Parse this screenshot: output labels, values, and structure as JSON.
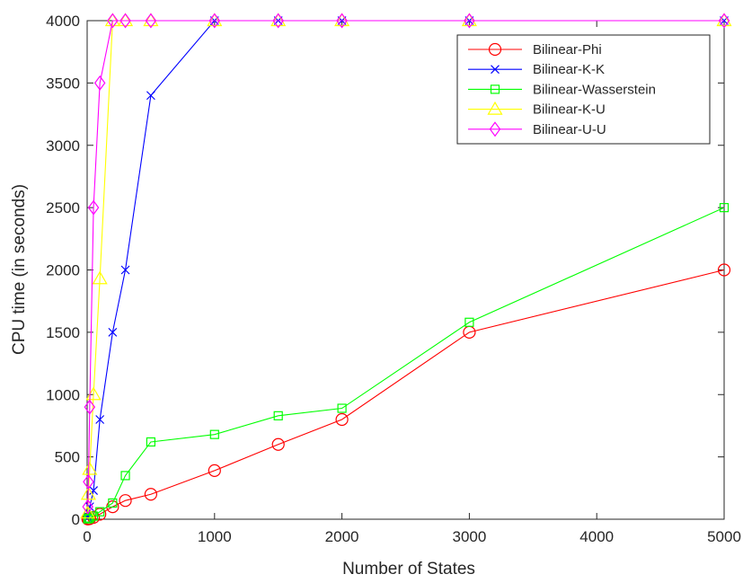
{
  "chart_data": {
    "type": "line",
    "title": "",
    "xlabel": "Number of States",
    "ylabel": "CPU time (in seconds)",
    "xlim": [
      0,
      5000
    ],
    "ylim": [
      0,
      4000
    ],
    "xticks": [
      0,
      1000,
      2000,
      3000,
      4000,
      5000
    ],
    "yticks": [
      0,
      500,
      1000,
      1500,
      2000,
      2500,
      3000,
      3500,
      4000
    ],
    "grid": false,
    "legend_position": "top-right",
    "series": [
      {
        "name": "Bilinear-Phi",
        "color": "#ff0000",
        "marker": "circle",
        "x": [
          5,
          10,
          20,
          50,
          100,
          200,
          300,
          500,
          1000,
          1500,
          2000,
          3000,
          5000
        ],
        "y": [
          2,
          3,
          5,
          15,
          40,
          100,
          150,
          200,
          390,
          600,
          800,
          1500,
          2000
        ]
      },
      {
        "name": "Bilinear-K-K",
        "color": "#0000ff",
        "marker": "x",
        "x": [
          5,
          10,
          20,
          50,
          100,
          200,
          300,
          500,
          1000,
          1500,
          2000,
          3000,
          5000
        ],
        "y": [
          10,
          20,
          100,
          230,
          800,
          1500,
          2000,
          3400,
          4000,
          4000,
          4000,
          4000,
          4000
        ]
      },
      {
        "name": "Bilinear-Wasserstein",
        "color": "#00ff00",
        "marker": "square",
        "x": [
          5,
          10,
          20,
          50,
          100,
          200,
          300,
          500,
          1000,
          1500,
          2000,
          3000,
          5000
        ],
        "y": [
          2,
          5,
          10,
          25,
          60,
          130,
          350,
          620,
          680,
          830,
          890,
          1580,
          2500
        ]
      },
      {
        "name": "Bilinear-K-U",
        "color": "#ffff00",
        "marker": "triangle",
        "x": [
          5,
          10,
          20,
          50,
          100,
          200,
          300,
          500,
          1000,
          1500,
          2000,
          3000,
          5000
        ],
        "y": [
          50,
          200,
          400,
          1000,
          1930,
          4000,
          4000,
          4000,
          4000,
          4000,
          4000,
          4000,
          4000
        ]
      },
      {
        "name": "Bilinear-U-U",
        "color": "#ff00ff",
        "marker": "diamond",
        "x": [
          5,
          10,
          20,
          50,
          100,
          200,
          300,
          500,
          1000,
          1500,
          2000,
          3000,
          5000
        ],
        "y": [
          100,
          300,
          900,
          2500,
          3500,
          4000,
          4000,
          4000,
          4000,
          4000,
          4000,
          4000,
          4000
        ]
      }
    ]
  }
}
